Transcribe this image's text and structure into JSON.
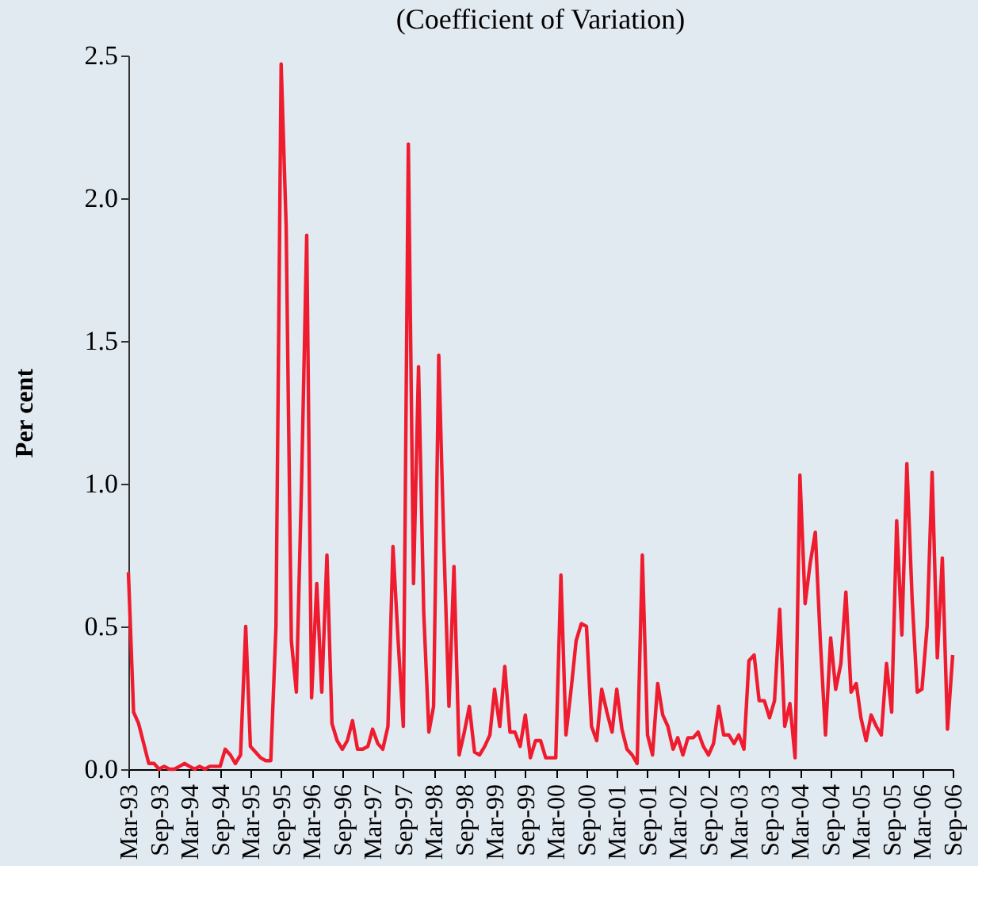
{
  "chart_data": {
    "type": "line",
    "title": "(Coefficient of Variation)",
    "ylabel": "Per cent",
    "x": [
      "1993-03",
      "1993-04",
      "1993-05",
      "1993-07",
      "1993-08",
      "1993-09",
      "1993-10",
      "1993-11",
      "1993-12",
      "1994-01",
      "1994-02",
      "1994-03",
      "1994-04",
      "1994-05",
      "1994-06",
      "1994-07",
      "1994-08",
      "1994-09",
      "1994-10",
      "1994-11",
      "1994-12",
      "1995-01",
      "1995-02",
      "1995-03",
      "1995-04",
      "1995-05",
      "1995-06",
      "1995-07",
      "1995-08",
      "1995-09",
      "1995-10",
      "1995-11",
      "1995-12",
      "1996-01",
      "1996-02",
      "1996-03",
      "1996-04",
      "1996-05",
      "1996-06",
      "1996-07",
      "1996-08",
      "1996-09",
      "1996-10",
      "1996-11",
      "1996-12",
      "1997-01",
      "1997-02",
      "1997-03",
      "1997-04",
      "1997-05",
      "1997-06",
      "1997-07",
      "1997-08",
      "1997-09",
      "1997-10",
      "1997-11",
      "1997-12",
      "1998-01",
      "1998-02",
      "1998-03",
      "1998-04",
      "1998-05",
      "1998-06",
      "1998-07",
      "1998-08",
      "1998-09",
      "1998-10",
      "1998-11",
      "1998-12",
      "1999-01",
      "1999-02",
      "1999-03",
      "1999-04",
      "1999-05",
      "1999-06",
      "1999-07",
      "1999-08",
      "1999-09",
      "1999-10",
      "1999-11",
      "1999-12",
      "2000-01",
      "2000-02",
      "2000-03",
      "2000-04",
      "2000-05",
      "2000-06",
      "2000-07",
      "2000-08",
      "2000-09",
      "2000-10",
      "2000-11",
      "2000-12",
      "2001-01",
      "2001-02",
      "2001-03",
      "2001-04",
      "2001-05",
      "2001-06",
      "2001-07",
      "2001-08",
      "2001-09",
      "2001-10",
      "2001-11",
      "2001-12",
      "2002-01",
      "2002-02",
      "2002-03",
      "2002-04",
      "2002-05",
      "2002-06",
      "2002-07",
      "2002-08",
      "2002-09",
      "2002-10",
      "2002-11",
      "2002-12",
      "2003-01",
      "2003-02",
      "2003-03",
      "2003-04",
      "2003-05",
      "2003-06",
      "2003-07",
      "2003-08",
      "2003-09",
      "2003-10",
      "2003-11",
      "2003-12",
      "2004-01",
      "2004-02",
      "2004-03",
      "2004-04",
      "2004-05",
      "2004-06",
      "2004-07",
      "2004-08",
      "2004-09",
      "2004-10",
      "2004-11",
      "2004-12",
      "2005-01",
      "2005-02",
      "2005-03",
      "2005-04",
      "2005-05",
      "2005-06",
      "2005-07",
      "2005-08",
      "2005-09",
      "2005-10",
      "2005-11",
      "2005-12",
      "2006-01",
      "2006-02",
      "2006-03",
      "2006-04",
      "2006-05",
      "2006-06",
      "2006-07",
      "2006-08",
      "2006-09"
    ],
    "series": [
      {
        "color": "#ee1c2e",
        "values": [
          0.69,
          0.2,
          0.16,
          0.02,
          0.02,
          0.0,
          0.01,
          0.0,
          0.0,
          0.01,
          0.02,
          0.01,
          0.0,
          0.01,
          0.0,
          0.01,
          0.01,
          0.01,
          0.07,
          0.05,
          0.02,
          0.05,
          0.5,
          0.08,
          0.06,
          0.04,
          0.03,
          0.03,
          0.5,
          2.47,
          1.9,
          0.45,
          0.27,
          1.0,
          1.87,
          0.25,
          0.65,
          0.27,
          0.75,
          0.16,
          0.1,
          0.07,
          0.1,
          0.17,
          0.07,
          0.07,
          0.08,
          0.14,
          0.09,
          0.07,
          0.15,
          0.78,
          0.45,
          0.15,
          2.19,
          0.65,
          1.41,
          0.55,
          0.13,
          0.22,
          1.45,
          0.8,
          0.22,
          0.71,
          0.05,
          0.13,
          0.22,
          0.06,
          0.05,
          0.08,
          0.12,
          0.28,
          0.15,
          0.36,
          0.13,
          0.13,
          0.08,
          0.19,
          0.04,
          0.1,
          0.1,
          0.04,
          0.04,
          0.04,
          0.68,
          0.12,
          0.28,
          0.45,
          0.51,
          0.5,
          0.15,
          0.1,
          0.28,
          0.2,
          0.13,
          0.28,
          0.14,
          0.07,
          0.05,
          0.02,
          0.75,
          0.12,
          0.05,
          0.3,
          0.19,
          0.15,
          0.07,
          0.11,
          0.05,
          0.11,
          0.11,
          0.13,
          0.08,
          0.05,
          0.09,
          0.22,
          0.12,
          0.12,
          0.09,
          0.12,
          0.07,
          0.38,
          0.4,
          0.24,
          0.24,
          0.18,
          0.24,
          0.56,
          0.15,
          0.23,
          0.04,
          1.03,
          0.58,
          0.72,
          0.83,
          0.45,
          0.12,
          0.46,
          0.28,
          0.37,
          0.62,
          0.27,
          0.3,
          0.18,
          0.1,
          0.19,
          0.15,
          0.12,
          0.37,
          0.2,
          0.87,
          0.47,
          1.07,
          0.6,
          0.27,
          0.28,
          0.5,
          1.04,
          0.39,
          0.74,
          0.14,
          0.4
        ]
      }
    ],
    "xlim": [
      "1993-03",
      "2006-09"
    ],
    "xticks": [
      {
        "value": "1993-03",
        "label": "Mar-93"
      },
      {
        "value": "1993-09",
        "label": "Sep-93"
      },
      {
        "value": "1994-03",
        "label": "Mar-94"
      },
      {
        "value": "1994-09",
        "label": "Sep-94"
      },
      {
        "value": "1995-03",
        "label": "Mar-95"
      },
      {
        "value": "1995-09",
        "label": "Sep-95"
      },
      {
        "value": "1996-03",
        "label": "Mar-96"
      },
      {
        "value": "1996-09",
        "label": "Sep-96"
      },
      {
        "value": "1997-03",
        "label": "Mar-97"
      },
      {
        "value": "1997-09",
        "label": "Sep-97"
      },
      {
        "value": "1998-03",
        "label": "Mar-98"
      },
      {
        "value": "1998-09",
        "label": "Sep-98"
      },
      {
        "value": "1999-03",
        "label": "Mar-99"
      },
      {
        "value": "1999-09",
        "label": "Sep-99"
      },
      {
        "value": "2000-03",
        "label": "Mar-00"
      },
      {
        "value": "2000-09",
        "label": "Sep-00"
      },
      {
        "value": "2001-03",
        "label": "Mar-01"
      },
      {
        "value": "2001-09",
        "label": "Sep-01"
      },
      {
        "value": "2002-03",
        "label": "Mar-02"
      },
      {
        "value": "2002-09",
        "label": "Sep-02"
      },
      {
        "value": "2003-03",
        "label": "Mar-03"
      },
      {
        "value": "2003-09",
        "label": "Sep-03"
      },
      {
        "value": "2004-03",
        "label": "Mar-04"
      },
      {
        "value": "2004-09",
        "label": "Sep-04"
      },
      {
        "value": "2005-03",
        "label": "Mar-05"
      },
      {
        "value": "2005-09",
        "label": "Sep-05"
      },
      {
        "value": "2006-03",
        "label": "Mar-06"
      },
      {
        "value": "2006-09",
        "label": "Sep-06"
      }
    ],
    "ylim": [
      0,
      2.5
    ],
    "yticks": [
      {
        "value": 0,
        "label": "0.0"
      },
      {
        "value": 0.5,
        "label": "0.5"
      },
      {
        "value": 1,
        "label": "1.0"
      },
      {
        "value": 1.5,
        "label": "1.5"
      },
      {
        "value": 2,
        "label": "2.0"
      },
      {
        "value": 2.5,
        "label": "2.5"
      }
    ],
    "grid": false,
    "marker": "none",
    "line_style": "solid"
  }
}
